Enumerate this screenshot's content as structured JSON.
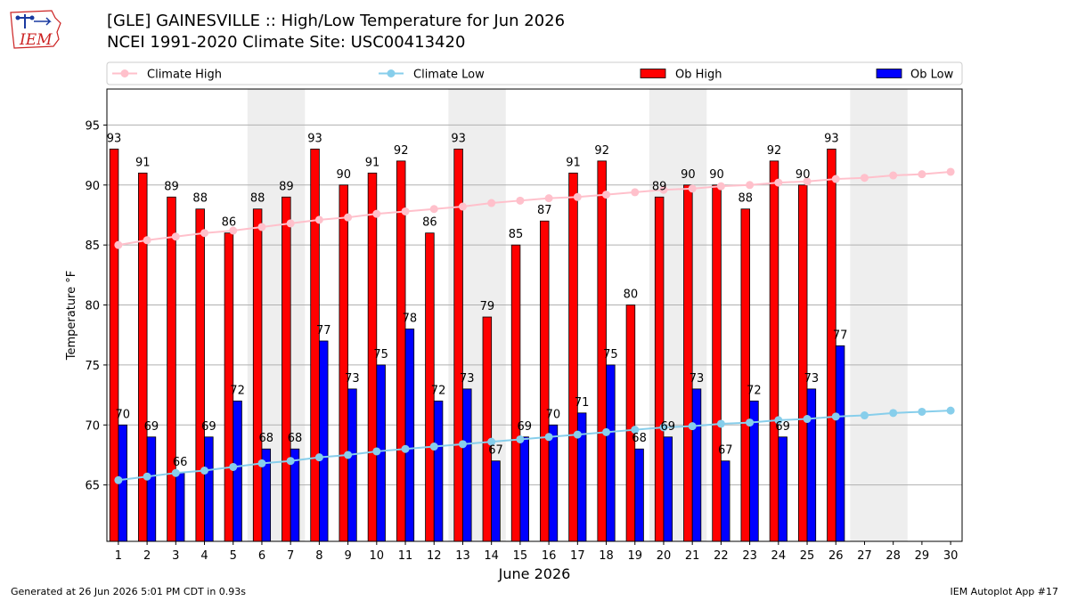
{
  "header": {
    "title_line1": "[GLE] GAINESVILLE :: High/Low Temperature for Jun 2026",
    "title_line2": "NCEI 1991-2020 Climate Site: USC00413420"
  },
  "logo": {
    "text": "IEM"
  },
  "footer": {
    "generated": "Generated at 26 Jun 2026 5:01 PM CDT in 0.93s",
    "app": "IEM Autoplot App #17"
  },
  "colors": {
    "ob_high": "#ff0000",
    "ob_low": "#0000ff",
    "climate_high": "#ffc0cb",
    "climate_low": "#87ceeb",
    "weekend_shade": "#eeeeee"
  },
  "chart_data": {
    "type": "bar",
    "xlabel": "June 2026",
    "ylabel": "Temperature °F",
    "ylim": [
      60.3,
      98
    ],
    "yticks": [
      65,
      70,
      75,
      80,
      85,
      90,
      95
    ],
    "grid": true,
    "legend_position": "top",
    "categories": [
      "1",
      "2",
      "3",
      "4",
      "5",
      "6",
      "7",
      "8",
      "9",
      "10",
      "11",
      "12",
      "13",
      "14",
      "15",
      "16",
      "17",
      "18",
      "19",
      "20",
      "21",
      "22",
      "23",
      "24",
      "25",
      "26",
      "27",
      "28",
      "29",
      "30"
    ],
    "shaded_days": [
      [
        6,
        7
      ],
      [
        13,
        14
      ],
      [
        20,
        21
      ],
      [
        27,
        28
      ]
    ],
    "series": [
      {
        "name": "Ob High",
        "kind": "bar",
        "values": [
          93,
          91,
          89,
          88,
          86,
          88,
          89,
          93,
          90,
          91,
          92,
          86,
          93,
          79,
          85,
          87,
          91,
          92,
          80,
          89,
          90,
          90,
          88,
          92,
          90,
          93,
          null,
          null,
          null,
          null
        ]
      },
      {
        "name": "Ob Low",
        "kind": "bar",
        "values": [
          70,
          69,
          66,
          69,
          72,
          68,
          68,
          77,
          73,
          75,
          78,
          72,
          73,
          67,
          69,
          70,
          71,
          75,
          68,
          69,
          73,
          67,
          72,
          69,
          73,
          76.6,
          null,
          null,
          null,
          null
        ]
      },
      {
        "name": "Climate High",
        "kind": "line",
        "values": [
          85.0,
          85.4,
          85.7,
          86.0,
          86.2,
          86.5,
          86.8,
          87.1,
          87.3,
          87.6,
          87.8,
          88.0,
          88.2,
          88.5,
          88.7,
          88.9,
          89.0,
          89.2,
          89.4,
          89.6,
          89.7,
          89.9,
          90.0,
          90.2,
          90.3,
          90.5,
          90.6,
          90.8,
          90.9,
          91.1
        ]
      },
      {
        "name": "Climate Low",
        "kind": "line",
        "values": [
          65.4,
          65.7,
          66.0,
          66.2,
          66.5,
          66.8,
          67.0,
          67.3,
          67.5,
          67.8,
          68.0,
          68.2,
          68.4,
          68.6,
          68.8,
          69.0,
          69.2,
          69.4,
          69.6,
          69.8,
          69.9,
          70.1,
          70.2,
          70.4,
          70.5,
          70.7,
          70.8,
          71.0,
          71.1,
          71.2
        ]
      }
    ],
    "data_labels": {
      "Ob High": [
        "93",
        "91",
        "89",
        "88",
        "86",
        "88",
        "89",
        "93",
        "90",
        "91",
        "92",
        "86",
        "93",
        "79",
        "85",
        "87",
        "91",
        "92",
        "80",
        "89",
        "90",
        "90",
        "88",
        "92",
        "90",
        "93"
      ],
      "Ob Low": [
        "70",
        "69",
        "66",
        "69",
        "72",
        "68",
        "68",
        "77",
        "73",
        "75",
        "78",
        "72",
        "73",
        "67",
        "69",
        "70",
        "71",
        "75",
        "68",
        "69",
        "73",
        "67",
        "72",
        "69",
        "73",
        "77"
      ]
    }
  }
}
